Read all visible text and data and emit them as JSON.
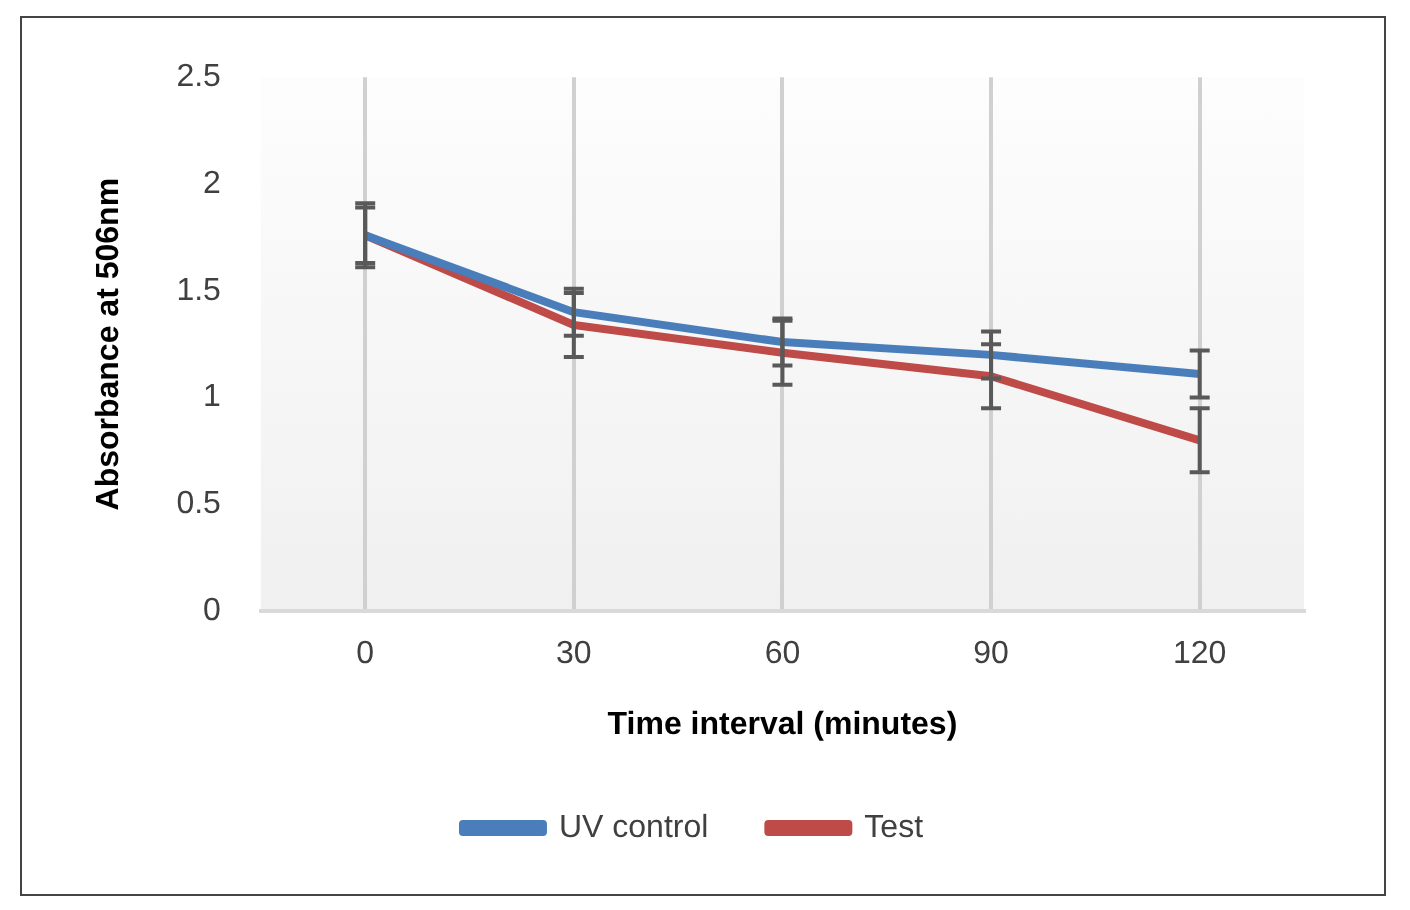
{
  "chart_data": {
    "type": "line",
    "xlabel": "Time interval (minutes)",
    "ylabel": "Absorbance at 506nm",
    "categories": [
      "0",
      "30",
      "60",
      "90",
      "120"
    ],
    "series": [
      {
        "name": "UV control",
        "color": "#4a7ebb",
        "values": [
          1.76,
          1.4,
          1.26,
          1.2,
          1.11
        ],
        "errors": [
          0.15,
          0.11,
          0.11,
          0.11,
          0.11
        ]
      },
      {
        "name": "Test",
        "color": "#be4b48",
        "values": [
          1.76,
          1.34,
          1.21,
          1.1,
          0.8
        ],
        "errors": [
          0.13,
          0.15,
          0.15,
          0.15,
          0.15
        ]
      }
    ],
    "ylim": [
      0,
      2.5
    ],
    "yticks": [
      0,
      0.5,
      1,
      1.5,
      2,
      2.5
    ],
    "grid": "x",
    "legend": "bottom",
    "marker": "none",
    "line_style": "solid"
  }
}
